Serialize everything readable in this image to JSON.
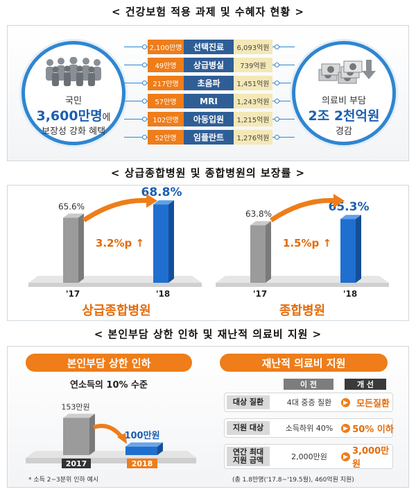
{
  "section1_title": "< 건강보험 적용 과제 및 수혜자 현황 >",
  "section2_title": "< 상급종합병원 및 종합병원의 보장률 >",
  "section3_title": "< 본인부담 상한 인하 및 재난적 의료비 지원 >",
  "left_circle": {
    "line1": "국민",
    "big": "3,600만명",
    "suffix": "에",
    "line3": "보장성 강화 혜택"
  },
  "right_circle": {
    "line1": "의료비 부담",
    "big": "2조 2천억원",
    "line3": "경감"
  },
  "items": [
    {
      "count": "2,100만명",
      "name": "선택진료",
      "amount": "6,093억원"
    },
    {
      "count": "49만명",
      "name": "상급병실",
      "amount": "739억원"
    },
    {
      "count": "217만명",
      "name": "초음파",
      "amount": "1,451억원"
    },
    {
      "count": "57만명",
      "name": "MRI",
      "amount": "1,243억원"
    },
    {
      "count": "102만명",
      "name": "아동입원",
      "amount": "1,215억원"
    },
    {
      "count": "52만명",
      "name": "임플란트",
      "amount": "1,276억원"
    }
  ],
  "chart_data": [
    {
      "type": "bar",
      "title": "상급종합병원",
      "categories": [
        "'17",
        "'18"
      ],
      "values": [
        65.6,
        68.8
      ],
      "value_labels": [
        "65.6%",
        "68.8%"
      ],
      "change_label": "3.2%p ↑",
      "colors": [
        "#9a9a9a",
        "#1f6fd0"
      ]
    },
    {
      "type": "bar",
      "title": "종합병원",
      "categories": [
        "'17",
        "'18"
      ],
      "values": [
        63.8,
        65.3
      ],
      "value_labels": [
        "63.8%",
        "65.3%"
      ],
      "change_label": "1.5%p ↑",
      "colors": [
        "#9a9a9a",
        "#1f6fd0"
      ]
    },
    {
      "type": "bar",
      "title": "본인부담 상한 인하",
      "categories": [
        "2017",
        "2018"
      ],
      "values": [
        153,
        100
      ],
      "value_labels": [
        "153만원",
        "100만원"
      ],
      "colors": [
        "#9a9a9a",
        "#1f6fd0"
      ]
    }
  ],
  "cap": {
    "pill": "본인부담 상한 인하",
    "subline": "연소득의 10% 수준",
    "footnote": "* 소득 2~3분위 인하 예시"
  },
  "catastrophic": {
    "pill": "재난적 의료비 지원",
    "header_before": "이 전",
    "header_after": "개 선",
    "rows": [
      {
        "label": "대상 질환",
        "before": "4대 중증 질환",
        "after": "모든질환"
      },
      {
        "label": "지원 대상",
        "before": "소득하위 40%",
        "after": "50% 이하"
      },
      {
        "label": "연간 최대\n지원 금액",
        "before": "2,000만원",
        "after": "3,000만원"
      }
    ],
    "footnote": "(총 1.8만명('17.8~'19.5월), 460억원 지원)"
  },
  "colors": {
    "orange": "#ee7d1a",
    "navy": "#2f5e96",
    "blue": "#1f6fd0",
    "ring": "#2f86d0"
  }
}
